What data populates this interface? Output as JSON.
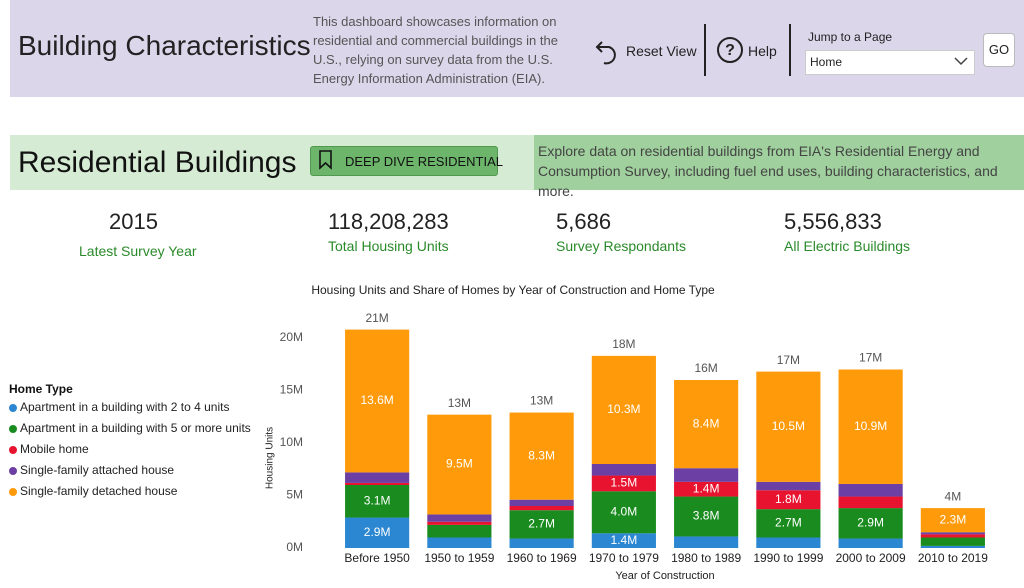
{
  "header": {
    "title": "Building Characteristics",
    "description": "This dashboard showcases information on residential and commercial buildings in the U.S., relying on survey data from the U.S. Energy Information Administration (EIA).",
    "reset": "Reset View",
    "help": "Help",
    "jump_label": "Jump to a Page",
    "dropdown": "Home",
    "go": "GO"
  },
  "section": {
    "title": "Residential Buildings",
    "button": "DEEP DIVE RESIDENTIAL",
    "description": "Explore data on residential buildings from EIA's Residential Energy and Consumption Survey, including fuel end uses, building characteristics, and more."
  },
  "kpis": [
    {
      "value": "2015",
      "label": "Latest Survey Year"
    },
    {
      "value": "118,208,283",
      "label": "Total Housing Units"
    },
    {
      "value": "5,686",
      "label": "Survey Respondants"
    },
    {
      "value": "5,556,833",
      "label": "All Electric Buildings"
    }
  ],
  "chart_data": {
    "type": "stacked_bar",
    "title": "Housing Units and Share of Homes by Year of Construction and Home Type",
    "x_label": "Year of Construction",
    "y_label": "Housing Units",
    "legend_title": "Home Type",
    "legend_position": "left",
    "categories": [
      "Before 1950",
      "1950 to 1959",
      "1960 to 1969",
      "1970 to 1979",
      "1980 to 1989",
      "1990 to 1999",
      "2000 to 2009",
      "2010 to 2019"
    ],
    "series": [
      {
        "name": "Apartment in a building with 2 to 4 units",
        "color": "#2b87d1",
        "values": [
          2900000,
          1000000,
          900000,
          1400000,
          1100000,
          1000000,
          900000,
          200000
        ],
        "value_labels": [
          "2.9M",
          null,
          null,
          "1.4M",
          null,
          null,
          null,
          null
        ]
      },
      {
        "name": "Apartment in a building with 5 or more units",
        "color": "#1a8c1f",
        "values": [
          3100000,
          1200000,
          2700000,
          4000000,
          3800000,
          2700000,
          2900000,
          800000
        ],
        "value_labels": [
          "3.1M",
          null,
          "2.7M",
          "4.0M",
          "3.8M",
          "2.7M",
          "2.9M",
          null
        ]
      },
      {
        "name": "Mobile home",
        "color": "#e8132e",
        "values": [
          200000,
          300000,
          400000,
          1500000,
          1400000,
          1800000,
          1100000,
          300000
        ],
        "value_labels": [
          null,
          null,
          null,
          "1.5M",
          "1.4M",
          "1.8M",
          null,
          null
        ]
      },
      {
        "name": "Single-family attached house",
        "color": "#6b3fa3",
        "values": [
          1000000,
          700000,
          600000,
          1100000,
          1300000,
          800000,
          1200000,
          200000
        ],
        "value_labels": [
          null,
          null,
          null,
          null,
          null,
          null,
          null,
          null
        ]
      },
      {
        "name": "Single-family detached house",
        "color": "#ff9b0a",
        "values": [
          13600000,
          9500000,
          8300000,
          10300000,
          8400000,
          10500000,
          10900000,
          2300000
        ],
        "value_labels": [
          "13.6M",
          "9.5M",
          "8.3M",
          "10.3M",
          "8.4M",
          "10.5M",
          "10.9M",
          "2.3M"
        ]
      }
    ],
    "totals": [
      20800000,
      12700000,
      12900000,
      18300000,
      16000000,
      16800000,
      17000000,
      3800000
    ],
    "total_labels": [
      "21M",
      "13M",
      "13M",
      "18M",
      "16M",
      "17M",
      "17M",
      "4M"
    ],
    "ylim": [
      0,
      20000000
    ],
    "yticks": [
      {
        "value": 0,
        "label": "0M"
      },
      {
        "value": 5000000,
        "label": "5M"
      },
      {
        "value": 10000000,
        "label": "10M"
      },
      {
        "value": 15000000,
        "label": "15M"
      },
      {
        "value": 20000000,
        "label": "20M"
      }
    ]
  }
}
